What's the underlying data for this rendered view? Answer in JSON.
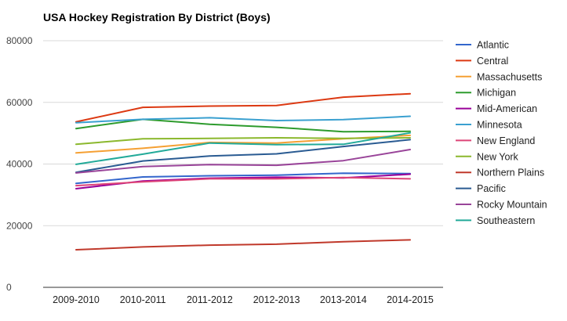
{
  "chart_data": {
    "type": "line",
    "title": "USA Hockey Registration By District (Boys)",
    "xlabel": "",
    "ylabel": "",
    "categories": [
      "2009-2010",
      "2010-2011",
      "2011-2012",
      "2012-2013",
      "2013-2014",
      "2014-2015"
    ],
    "ylim": [
      0,
      80000
    ],
    "yticks": [
      0,
      20000,
      40000,
      60000,
      80000
    ],
    "grid": true,
    "legend_position": "right",
    "series": [
      {
        "name": "Atlantic",
        "color": "#3366cc",
        "values": [
          33700,
          35800,
          36200,
          36400,
          37000,
          36900
        ]
      },
      {
        "name": "Central",
        "color": "#dc3912",
        "values": [
          53700,
          58400,
          58800,
          59000,
          61700,
          62800
        ]
      },
      {
        "name": "Massachusetts",
        "color": "#f5a033",
        "values": [
          43600,
          45100,
          47000,
          46800,
          48200,
          49300
        ]
      },
      {
        "name": "Michigan",
        "color": "#2d9b2d",
        "values": [
          51500,
          54500,
          52900,
          51900,
          50500,
          50600
        ]
      },
      {
        "name": "Mid-American",
        "color": "#990099",
        "values": [
          32000,
          34500,
          35400,
          35700,
          35500,
          36700
        ]
      },
      {
        "name": "Minnesota",
        "color": "#3aa0d0",
        "values": [
          53400,
          54500,
          55000,
          54100,
          54400,
          55500
        ]
      },
      {
        "name": "New England",
        "color": "#dd4477",
        "values": [
          33000,
          34200,
          35200,
          35200,
          35600,
          35200
        ]
      },
      {
        "name": "New York",
        "color": "#8bb82d",
        "values": [
          46400,
          48200,
          48300,
          48500,
          48300,
          48500
        ]
      },
      {
        "name": "Northern Plains",
        "color": "#c0392b",
        "values": [
          12200,
          13100,
          13700,
          14000,
          14800,
          15400
        ]
      },
      {
        "name": "Pacific",
        "color": "#2a5b92",
        "values": [
          37300,
          41000,
          42600,
          43300,
          45700,
          47900
        ]
      },
      {
        "name": "Rocky Mountain",
        "color": "#994499",
        "values": [
          37100,
          39200,
          39800,
          39600,
          41100,
          44700
        ]
      },
      {
        "name": "Southeastern",
        "color": "#22aa99",
        "values": [
          39900,
          43200,
          46800,
          46300,
          46400,
          50100
        ]
      }
    ]
  }
}
